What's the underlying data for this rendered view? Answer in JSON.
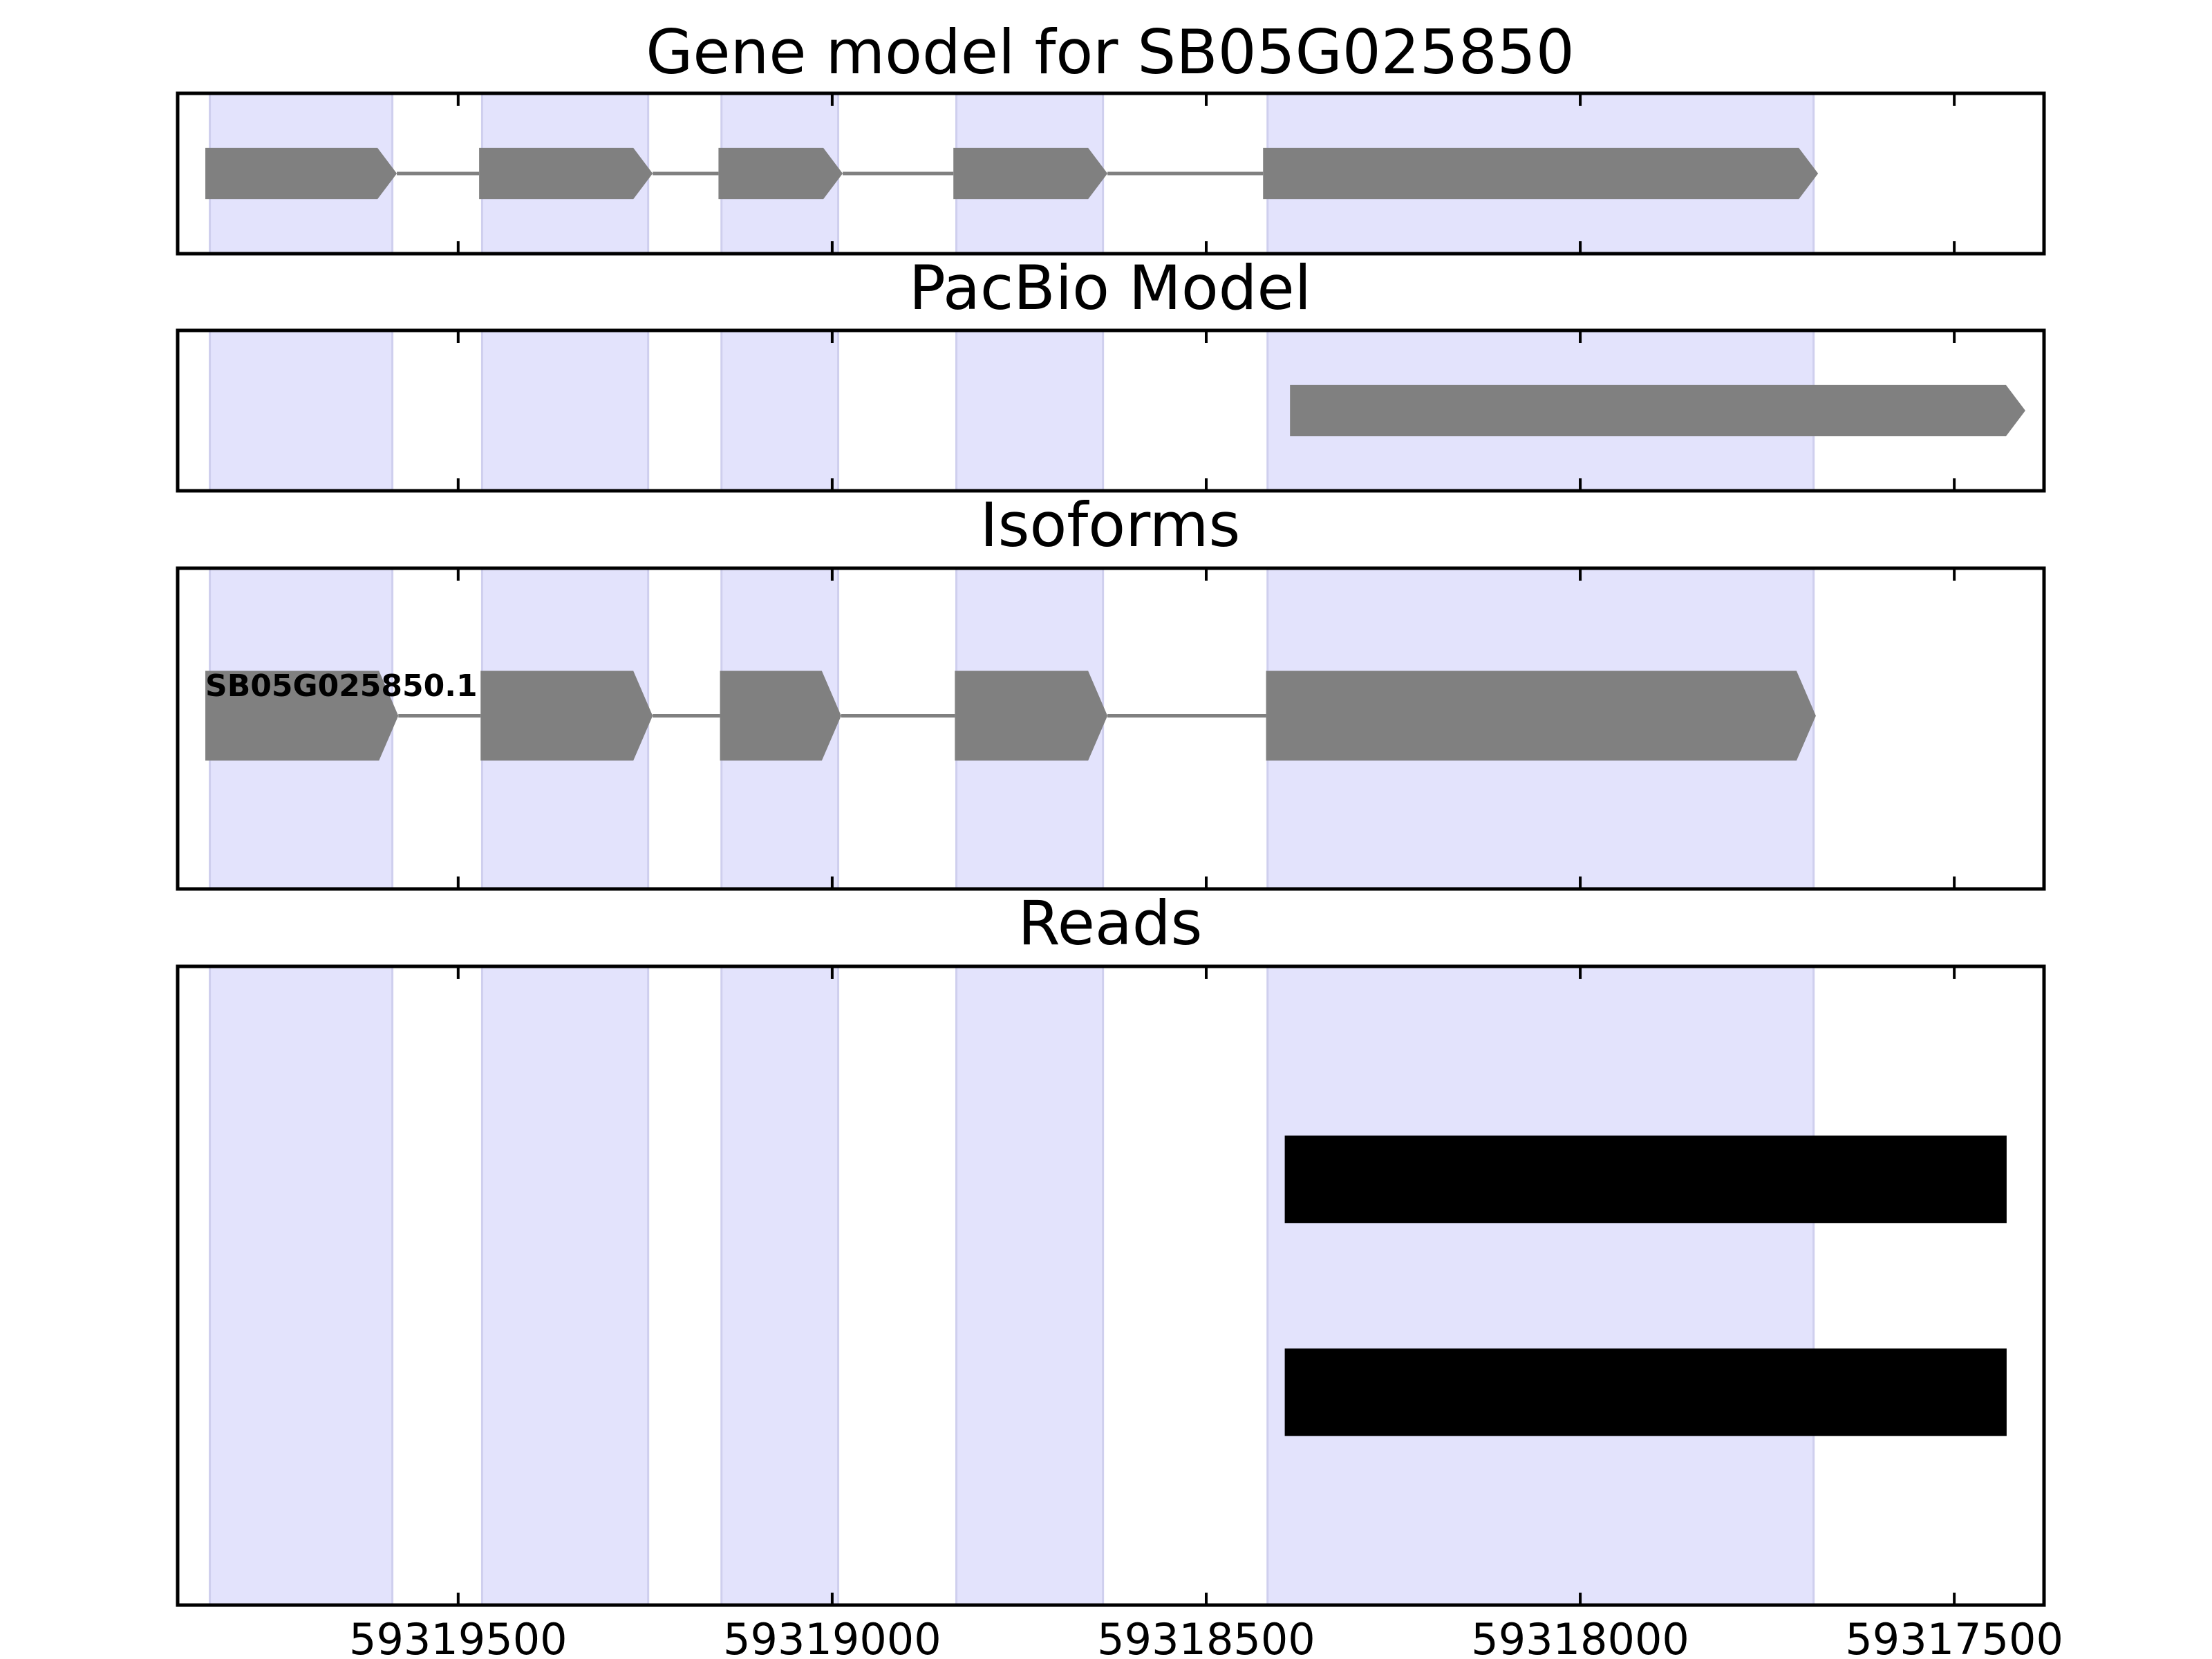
{
  "chart_data": {
    "type": "gene-track",
    "x_axis": {
      "direction": "reversed",
      "range": [
        59319875,
        59317380
      ],
      "ticks": [
        59319500,
        59319000,
        59318500,
        59318000,
        59317500
      ],
      "tick_labels": [
        "59319500",
        "59319000",
        "59318500",
        "59318000",
        "59317500"
      ]
    },
    "exon_regions": [
      [
        59319832,
        59319588
      ],
      [
        59319468,
        59319246
      ],
      [
        59319148,
        59318992
      ],
      [
        59318834,
        59318638
      ],
      [
        59318418,
        59317688
      ]
    ],
    "colors": {
      "exon_shade": "#e3e3fc",
      "exon_shade_edge": "#cfcfee",
      "feature": "#808080",
      "read": "#000000",
      "axis": "#000000"
    },
    "panels": [
      {
        "key": "gene_model",
        "title": "Gene model for SB05G025850",
        "features": [
          {
            "exons": [
              [
                59319838,
                59319582
              ],
              [
                59319472,
                59319240
              ],
              [
                59319152,
                59318986
              ],
              [
                59318838,
                59318632
              ],
              [
                59318424,
                59317682
              ]
            ],
            "track_y": 0.5,
            "thickness": 0.32
          }
        ]
      },
      {
        "key": "pacbio_model",
        "title": "PacBio Model",
        "features": [
          {
            "exons": [
              [
                59318388,
                59317405
              ]
            ],
            "track_y": 0.5,
            "thickness": 0.32
          }
        ]
      },
      {
        "key": "isoforms",
        "title": "Isoforms",
        "features": [
          {
            "name": "SB05G025850.1",
            "exons": [
              [
                59319838,
                59319580
              ],
              [
                59319470,
                59319240
              ],
              [
                59319150,
                59318988
              ],
              [
                59318836,
                59318632
              ],
              [
                59318420,
                59317685
              ]
            ],
            "track_y": 0.46,
            "thickness": 0.28
          }
        ]
      },
      {
        "key": "reads",
        "title": "Reads",
        "ylim": [
          0,
          3
        ],
        "reads": [
          {
            "start": 59318395,
            "end": 59317430,
            "y": 2.0
          },
          {
            "start": 59318395,
            "end": 59317430,
            "y": 1.0
          }
        ]
      }
    ]
  }
}
